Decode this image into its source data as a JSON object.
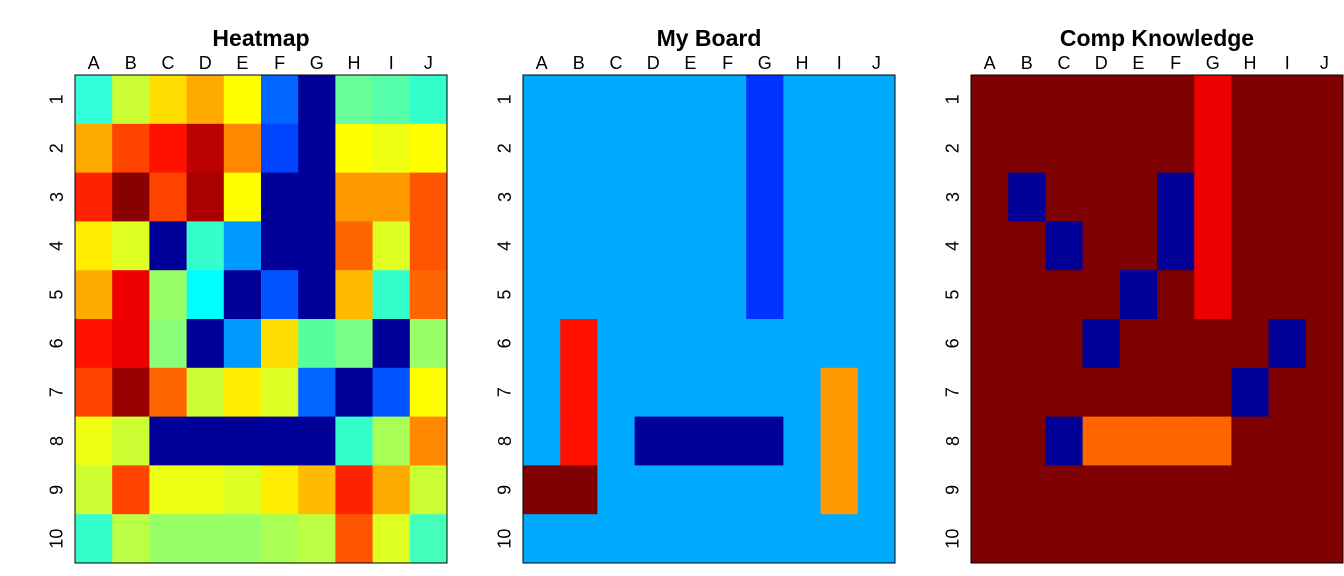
{
  "panels": [
    {
      "title": "Heatmap",
      "columns": [
        "A",
        "B",
        "C",
        "D",
        "E",
        "F",
        "G",
        "H",
        "I",
        "J"
      ],
      "rows": [
        "1",
        "2",
        "3",
        "4",
        "5",
        "6",
        "7",
        "8",
        "9",
        "10"
      ],
      "cells": [
        [
          "#33ffdd",
          "#ccff33",
          "#ffdd00",
          "#ffaa00",
          "#ffff00",
          "#0066ff",
          "#000099",
          "#66ff99",
          "#55ffaa",
          "#33ffcc"
        ],
        [
          "#ffaa00",
          "#ff4400",
          "#ff1100",
          "#bb0000",
          "#ff8800",
          "#0044ff",
          "#000099",
          "#ffff00",
          "#eeff11",
          "#ffff00"
        ],
        [
          "#ff2200",
          "#880000",
          "#ff4400",
          "#aa0000",
          "#ffff00",
          "#000099",
          "#000099",
          "#ff9900",
          "#ff9900",
          "#ff5500"
        ],
        [
          "#ffee00",
          "#ddff22",
          "#000099",
          "#33ffcc",
          "#0099ff",
          "#000099",
          "#000099",
          "#ff6600",
          "#ddff22",
          "#ff5500"
        ],
        [
          "#ffaa00",
          "#ee0000",
          "#99ff66",
          "#00ffff",
          "#000099",
          "#0055ff",
          "#000099",
          "#ffbb00",
          "#33ffcc",
          "#ff6600"
        ],
        [
          "#ff1100",
          "#ee0000",
          "#88ff77",
          "#000099",
          "#0099ff",
          "#ffdd00",
          "#55ff99",
          "#77ff88",
          "#000099",
          "#99ff66"
        ],
        [
          "#ff4400",
          "#990000",
          "#ff6600",
          "#ccff33",
          "#ffee00",
          "#ddff22",
          "#0066ff",
          "#000099",
          "#0055ff",
          "#ffff00"
        ],
        [
          "#eeff11",
          "#ccff33",
          "#000099",
          "#000099",
          "#000099",
          "#000099",
          "#000099",
          "#33ffcc",
          "#aaff55",
          "#ff8800"
        ],
        [
          "#ccff33",
          "#ff4400",
          "#eeff11",
          "#eeff11",
          "#ddff22",
          "#ffee00",
          "#ffbb00",
          "#ff2200",
          "#ffaa00",
          "#ccff33"
        ],
        [
          "#33ffcc",
          "#bbff44",
          "#99ff66",
          "#99ff66",
          "#99ff66",
          "#aaff55",
          "#bbff44",
          "#ff5500",
          "#ddff22",
          "#44ffbb"
        ]
      ]
    },
    {
      "title": "My Board",
      "columns": [
        "A",
        "B",
        "C",
        "D",
        "E",
        "F",
        "G",
        "H",
        "I",
        "J"
      ],
      "rows": [
        "1",
        "2",
        "3",
        "4",
        "5",
        "6",
        "7",
        "8",
        "9",
        "10"
      ],
      "cells": [
        [
          "#00aaff",
          "#00aaff",
          "#00aaff",
          "#00aaff",
          "#00aaff",
          "#00aaff",
          "#0033ff",
          "#00aaff",
          "#00aaff",
          "#00aaff"
        ],
        [
          "#00aaff",
          "#00aaff",
          "#00aaff",
          "#00aaff",
          "#00aaff",
          "#00aaff",
          "#0033ff",
          "#00aaff",
          "#00aaff",
          "#00aaff"
        ],
        [
          "#00aaff",
          "#00aaff",
          "#00aaff",
          "#00aaff",
          "#00aaff",
          "#00aaff",
          "#0033ff",
          "#00aaff",
          "#00aaff",
          "#00aaff"
        ],
        [
          "#00aaff",
          "#00aaff",
          "#00aaff",
          "#00aaff",
          "#00aaff",
          "#00aaff",
          "#0033ff",
          "#00aaff",
          "#00aaff",
          "#00aaff"
        ],
        [
          "#00aaff",
          "#00aaff",
          "#00aaff",
          "#00aaff",
          "#00aaff",
          "#00aaff",
          "#0033ff",
          "#00aaff",
          "#00aaff",
          "#00aaff"
        ],
        [
          "#00aaff",
          "#ff1100",
          "#00aaff",
          "#00aaff",
          "#00aaff",
          "#00aaff",
          "#00aaff",
          "#00aaff",
          "#00aaff",
          "#00aaff"
        ],
        [
          "#00aaff",
          "#ff1100",
          "#00aaff",
          "#00aaff",
          "#00aaff",
          "#00aaff",
          "#00aaff",
          "#00aaff",
          "#ff9900",
          "#00aaff"
        ],
        [
          "#00aaff",
          "#ff1100",
          "#00aaff",
          "#000099",
          "#000099",
          "#000099",
          "#000099",
          "#00aaff",
          "#ff9900",
          "#00aaff"
        ],
        [
          "#7f0000",
          "#7f0000",
          "#00aaff",
          "#00aaff",
          "#00aaff",
          "#00aaff",
          "#00aaff",
          "#00aaff",
          "#ff9900",
          "#00aaff"
        ],
        [
          "#00aaff",
          "#00aaff",
          "#00aaff",
          "#00aaff",
          "#00aaff",
          "#00aaff",
          "#00aaff",
          "#00aaff",
          "#00aaff",
          "#00aaff"
        ]
      ]
    },
    {
      "title": "Comp Knowledge",
      "columns": [
        "A",
        "B",
        "C",
        "D",
        "E",
        "F",
        "G",
        "H",
        "I",
        "J"
      ],
      "rows": [
        "1",
        "2",
        "3",
        "4",
        "5",
        "6",
        "7",
        "8",
        "9",
        "10"
      ],
      "cells": [
        [
          "#7f0000",
          "#7f0000",
          "#7f0000",
          "#7f0000",
          "#7f0000",
          "#7f0000",
          "#ee0000",
          "#7f0000",
          "#7f0000",
          "#7f0000"
        ],
        [
          "#7f0000",
          "#7f0000",
          "#7f0000",
          "#7f0000",
          "#7f0000",
          "#7f0000",
          "#ee0000",
          "#7f0000",
          "#7f0000",
          "#7f0000"
        ],
        [
          "#7f0000",
          "#000099",
          "#7f0000",
          "#7f0000",
          "#7f0000",
          "#000099",
          "#ee0000",
          "#7f0000",
          "#7f0000",
          "#7f0000"
        ],
        [
          "#7f0000",
          "#7f0000",
          "#000099",
          "#7f0000",
          "#7f0000",
          "#000099",
          "#ee0000",
          "#7f0000",
          "#7f0000",
          "#7f0000"
        ],
        [
          "#7f0000",
          "#7f0000",
          "#7f0000",
          "#7f0000",
          "#000099",
          "#7f0000",
          "#ee0000",
          "#7f0000",
          "#7f0000",
          "#7f0000"
        ],
        [
          "#7f0000",
          "#7f0000",
          "#7f0000",
          "#000099",
          "#7f0000",
          "#7f0000",
          "#7f0000",
          "#7f0000",
          "#000099",
          "#7f0000"
        ],
        [
          "#7f0000",
          "#7f0000",
          "#7f0000",
          "#7f0000",
          "#7f0000",
          "#7f0000",
          "#7f0000",
          "#000099",
          "#7f0000",
          "#7f0000"
        ],
        [
          "#7f0000",
          "#7f0000",
          "#000099",
          "#ff6600",
          "#ff6600",
          "#ff6600",
          "#ff6600",
          "#7f0000",
          "#7f0000",
          "#7f0000"
        ],
        [
          "#7f0000",
          "#7f0000",
          "#7f0000",
          "#7f0000",
          "#7f0000",
          "#7f0000",
          "#7f0000",
          "#7f0000",
          "#7f0000",
          "#7f0000"
        ],
        [
          "#7f0000",
          "#7f0000",
          "#7f0000",
          "#7f0000",
          "#7f0000",
          "#7f0000",
          "#7f0000",
          "#7f0000",
          "#7f0000",
          "#7f0000"
        ]
      ]
    }
  ]
}
